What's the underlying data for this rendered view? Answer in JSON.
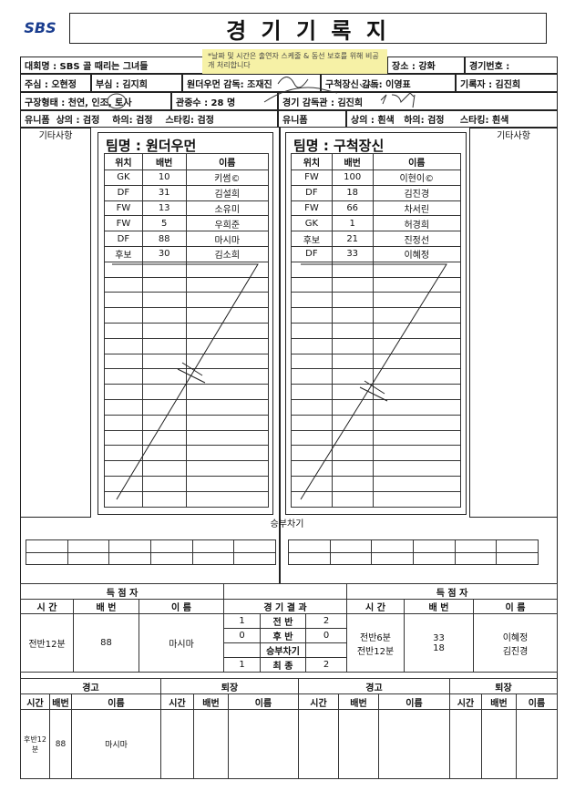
{
  "logo": "SBS",
  "title": "경 기 기 록 지",
  "note": "*날짜 및 시간은 출연자 스케줄 & 동선 보호를 위해 비공개 처리합니다",
  "header": {
    "tournament": "대회명 : SBS 골 때리는 그녀들",
    "venue": "장소 : 강화",
    "match_no": "경기번호 :",
    "referee": "주심 : 오현정",
    "assistant": "부심 : 김지희",
    "coach_a": "원더우먼 감독: 조재진",
    "coach_b": "구척장신 감독: 이영표",
    "recorder": "기록자 : 김진희",
    "field": "구장형태 : 천연, 인조, 토사",
    "crowd": "관중수 : 28  명",
    "supervisor": "경기 감독관 : 김진희",
    "uniform_a": "유니폼  상의 : 검정    하의: 검정    스타킹: 검정",
    "uniform_b_label": "유니폼",
    "uniform_b": "상의 : 흰색   하의: 검정     스타킹: 흰색"
  },
  "notes_label": "기타사항",
  "team_cols": [
    "위치",
    "배번",
    "이름"
  ],
  "teams": [
    {
      "name": "팀명 : 원더우먼",
      "players": [
        [
          "GK",
          "10",
          "키썸©"
        ],
        [
          "DF",
          "31",
          "김설희"
        ],
        [
          "FW",
          "13",
          "소유미"
        ],
        [
          "FW",
          "5",
          "우희준"
        ],
        [
          "DF",
          "88",
          "마시마"
        ],
        [
          "후보",
          "30",
          "김소희"
        ]
      ]
    },
    {
      "name": "팀명 : 구척장신",
      "players": [
        [
          "FW",
          "100",
          "이현이©"
        ],
        [
          "DF",
          "18",
          "김진경"
        ],
        [
          "FW",
          "66",
          "차서린"
        ],
        [
          "GK",
          "1",
          "허경희"
        ],
        [
          "후보",
          "21",
          "진정선"
        ],
        [
          "DF",
          "33",
          "이혜정"
        ]
      ]
    }
  ],
  "penalty_label": "승부차기",
  "scorers": {
    "label": "득 점 자",
    "cols": [
      "시 간",
      "배 번",
      "이 름"
    ],
    "result_label": "경 기 결 과",
    "left": {
      "time": "전반12분",
      "no": "88",
      "name": "마시마"
    },
    "right": {
      "time": [
        "전반6분",
        "전반12분"
      ],
      "no": [
        "33",
        "18"
      ],
      "name": [
        "이혜정",
        "김진경"
      ]
    },
    "result": [
      [
        "1",
        "전    반",
        "2"
      ],
      [
        "0",
        "후    반",
        "0"
      ],
      [
        "",
        "승부차기",
        ""
      ],
      [
        "1",
        "최    종",
        "2"
      ]
    ]
  },
  "cards": {
    "warn": "경고",
    "sent": "퇴장",
    "cols": [
      "시간",
      "배번",
      "이름"
    ],
    "left_warn": {
      "time": "후반12분",
      "no": "88",
      "name": "마시마"
    }
  }
}
